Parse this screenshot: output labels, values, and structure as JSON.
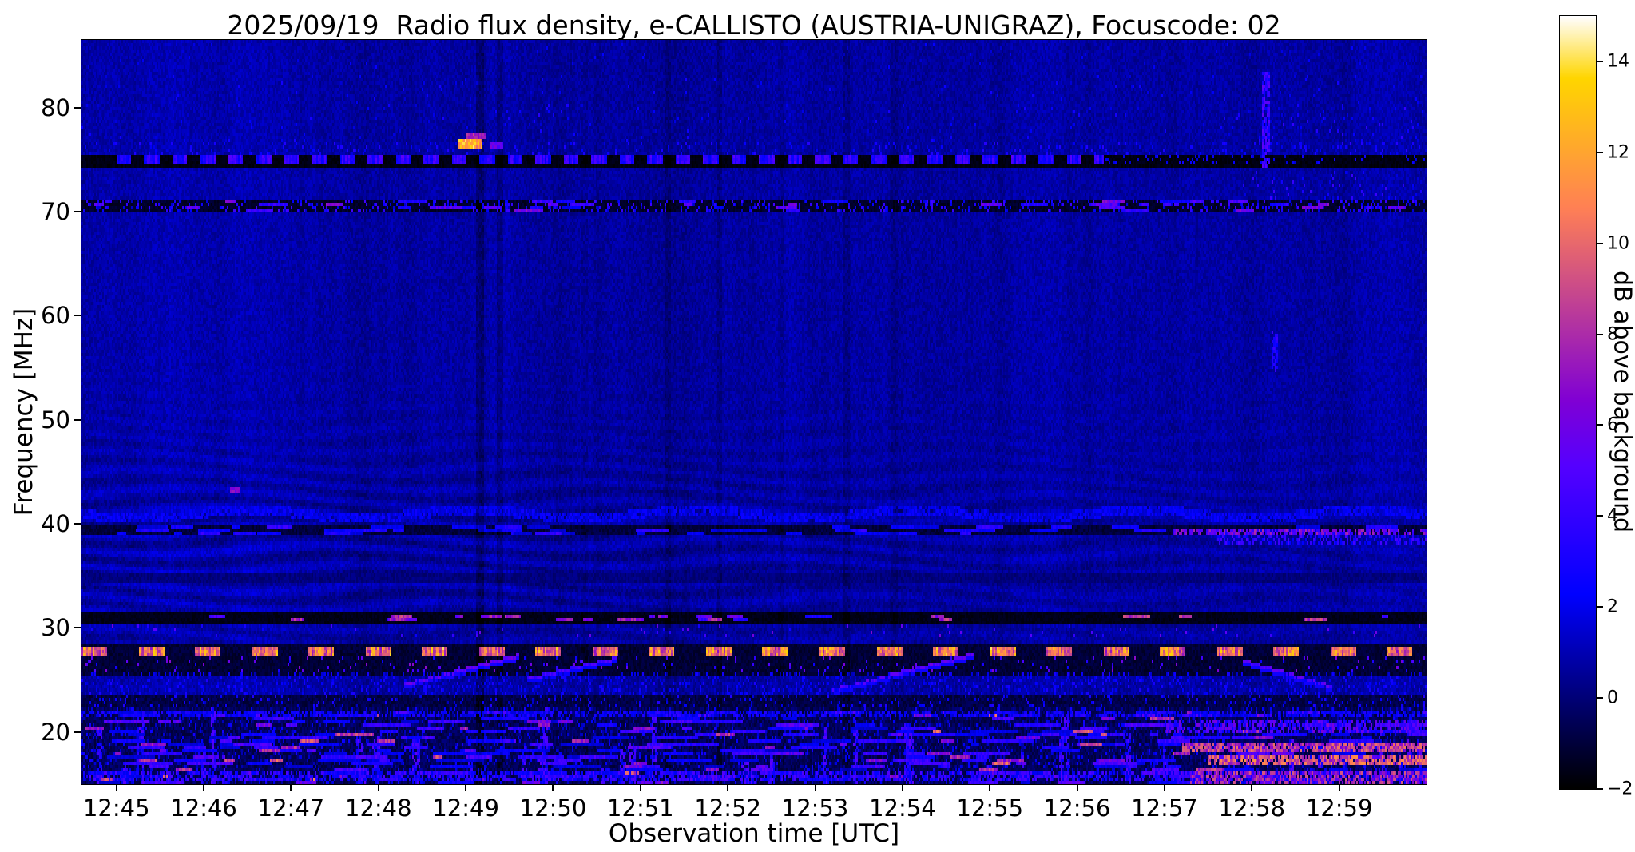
{
  "colors": {
    "background": "#ffffff",
    "axis": "#000000"
  },
  "chart_data": {
    "type": "heatmap",
    "title": "2025/09/19  Radio flux density, e-CALLISTO (AUSTRIA-UNIGRAZ), Focuscode: 02",
    "xlabel": "Observation time [UTC]",
    "ylabel": "Frequency [MHz]",
    "x_ticks": [
      "12:45",
      "12:46",
      "12:47",
      "12:48",
      "12:49",
      "12:50",
      "12:51",
      "12:52",
      "12:53",
      "12:54",
      "12:55",
      "12:56",
      "12:57",
      "12:58",
      "12:59"
    ],
    "y_ticks": [
      80,
      70,
      60,
      50,
      40,
      30,
      20
    ],
    "freq_range_mhz": [
      15,
      86.5
    ],
    "time_span_minutes": 15,
    "background_level_db": 0.7,
    "grid": false,
    "colorbar": {
      "label": "dB above background",
      "ticks": [
        14,
        12,
        10,
        8,
        6,
        4,
        2,
        0,
        -2
      ],
      "range": [
        -2,
        15
      ],
      "colormap": "gnuplot2"
    },
    "features": [
      {
        "type": "speckle_band",
        "f0": 84,
        "f1": 86.3,
        "density": 0.008,
        "vmin": 1.5,
        "vmax": 2.5
      },
      {
        "type": "speckle_band",
        "f0": 76.8,
        "f1": 83,
        "density": 0.012,
        "vmin": 1.5,
        "vmax": 3
      },
      {
        "type": "speckle_band",
        "f0": 78.5,
        "f1": 80.5,
        "t0": 4.3,
        "t1": 5.3,
        "density": 0.05,
        "vmin": 1.5,
        "vmax": 3.5
      },
      {
        "type": "speckle_band",
        "f0": 76,
        "f1": 80,
        "t0": 12.6,
        "t1": 15.4,
        "density": 0.04,
        "vmin": 1.3,
        "vmax": 4
      },
      {
        "type": "speckle_band",
        "f0": 75.6,
        "f1": 76.7,
        "density": 0.09,
        "vmin": 1.2,
        "vmax": 3.5
      },
      {
        "type": "dark_band",
        "f0": 74.5,
        "f1": 75.5,
        "level": -1.7,
        "jitter": 0.5
      },
      {
        "type": "dash_line",
        "f0": 74.95,
        "f1": 75.4,
        "t0": 0,
        "t1": 11.3,
        "period": 0.32,
        "duty": 0.55,
        "vmin": 2.2,
        "vmax": 5.0
      },
      {
        "type": "speckle_band",
        "f0": 74.95,
        "f1": 75.4,
        "t0": 11.3,
        "t1": 15.4,
        "density": 0.1,
        "vmin": 1.5,
        "vmax": 3
      },
      {
        "type": "blob",
        "t": 4.05,
        "f": 76.6,
        "w": 0.25,
        "h": 0.55,
        "value": 12.5
      },
      {
        "type": "blob",
        "t": 4.1,
        "f": 77.4,
        "w": 0.2,
        "h": 0.4,
        "value": 8
      },
      {
        "type": "blob",
        "t": 4.35,
        "f": 76.5,
        "w": 0.12,
        "h": 0.4,
        "value": 6
      },
      {
        "type": "dark_band",
        "f0": 70.2,
        "f1": 71.3,
        "level": -1.3,
        "jitter": 0.7
      },
      {
        "type": "speckle_band",
        "f0": 70.3,
        "f1": 71.2,
        "density": 0.2,
        "vmin": 1.2,
        "vmax": 4.5
      },
      {
        "type": "hsegments",
        "f0": 70.3,
        "f1": 71.2,
        "count": 45,
        "minLen": 0.06,
        "maxLen": 0.35,
        "vmin": 2,
        "vmax": 6.5
      },
      {
        "type": "speckle_band",
        "f0": 71.3,
        "f1": 74,
        "t0": 12.9,
        "t1": 15.4,
        "density": 0.05,
        "vmin": 1.3,
        "vmax": 4.5
      },
      {
        "type": "vburst",
        "t": 13.15,
        "f0": 74.5,
        "f1": 83.5,
        "width": 0.07,
        "density": 0.75,
        "vmin": 2.5,
        "vmax": 5.5
      },
      {
        "type": "vburst",
        "t": 13.25,
        "f0": 55,
        "f1": 58.5,
        "width": 0.06,
        "density": 0.8,
        "vmin": 2.2,
        "vmax": 4.2
      },
      {
        "type": "blob",
        "t": 1.35,
        "f": 43.4,
        "w": 0.1,
        "h": 0.45,
        "value": 6.5
      },
      {
        "type": "hline_bright",
        "f0": 40.8,
        "f1": 41.4,
        "t0": -0.4,
        "t1": 15.4,
        "speckle": 0.85,
        "wavy": true,
        "vmin": 1.3,
        "vmax": 2.8
      },
      {
        "type": "dark_band",
        "f0": 39.1,
        "f1": 40.0,
        "level": -1.0,
        "jitter": 0.9
      },
      {
        "type": "hsegments",
        "f0": 39.2,
        "f1": 39.9,
        "count": 70,
        "minLen": 0.05,
        "maxLen": 0.4,
        "vmin": 1.4,
        "vmax": 4
      },
      {
        "type": "hline_bright",
        "f0": 39.25,
        "f1": 39.7,
        "t0": 12.1,
        "t1": 15.4,
        "speckle": 0.65,
        "vmin": 3.5,
        "vmax": 8
      },
      {
        "type": "hline_bright",
        "f0": 38.4,
        "f1": 38.8,
        "t0": 12.6,
        "t1": 15.4,
        "speckle": 0.4,
        "vmin": 2,
        "vmax": 5
      },
      {
        "type": "dark_band",
        "f0": 34.75,
        "f1": 35.25,
        "level": 0.1,
        "jitter": 0.8
      },
      {
        "type": "speckle_band",
        "f0": 29.3,
        "f1": 30.4,
        "density": 0.02,
        "vmin": 2.5,
        "vmax": 7
      },
      {
        "type": "dark_band",
        "f0": 30.75,
        "f1": 31.5,
        "level": -1.6,
        "jitter": 0.5
      },
      {
        "type": "hsegments",
        "f0": 30.85,
        "f1": 31.4,
        "count": 28,
        "minLen": 0.05,
        "maxLen": 0.3,
        "vmin": 3,
        "vmax": 9
      },
      {
        "type": "dark_band",
        "f0": 25.8,
        "f1": 28.6,
        "level": -1.1,
        "jitter": 0.8
      },
      {
        "type": "dash_line",
        "f0": 27.55,
        "f1": 28.2,
        "t0": -0.4,
        "t1": 15.4,
        "period": 0.65,
        "duty": 0.45,
        "vmin": 8,
        "vmax": 12.5
      },
      {
        "type": "speckle_band",
        "f0": 25.9,
        "f1": 27.4,
        "density": 0.05,
        "vmin": 2.5,
        "vmax": 7
      },
      {
        "type": "diag",
        "t0": 3.3,
        "f0": 24.7,
        "t1": 4.6,
        "f1": 27.5,
        "value": 5.5
      },
      {
        "type": "diag",
        "t0": 4.7,
        "f0": 25.3,
        "t1": 5.7,
        "f1": 27.2,
        "value": 4.5
      },
      {
        "type": "diag",
        "t0": 8.2,
        "f0": 24.2,
        "t1": 9.8,
        "f1": 27.6,
        "value": 5
      },
      {
        "type": "diag",
        "t0": 12.9,
        "f0": 27.0,
        "t1": 13.9,
        "f1": 24.5,
        "value": 5
      },
      {
        "type": "speckle_band",
        "f0": 23.8,
        "f1": 25.6,
        "density": 0.22,
        "vmin": 0.8,
        "vmax": 3.2
      },
      {
        "type": "dark_band",
        "f0": 22.3,
        "f1": 23.7,
        "level": -0.8,
        "jitter": 1.0
      },
      {
        "type": "speckle_band",
        "f0": 22.4,
        "f1": 23.6,
        "density": 0.1,
        "vmin": 1.2,
        "vmax": 3.5
      },
      {
        "type": "dark_band",
        "f0": 15,
        "f1": 22.3,
        "level": -0.5,
        "jitter": 1.3
      },
      {
        "type": "speckle_band",
        "f0": 15,
        "f1": 22.3,
        "density": 0.15,
        "vmin": 0.5,
        "vmax": 3
      },
      {
        "type": "vbursts",
        "count": 45,
        "f0": 15,
        "f1": 22.5,
        "vmin": 1.8,
        "vmax": 5.5
      },
      {
        "type": "hsegments",
        "f0": 15.2,
        "f1": 22.2,
        "count": 320,
        "minLen": 0.07,
        "maxLen": 0.55,
        "vmin": 1.4,
        "vmax": 5
      },
      {
        "type": "hsegments",
        "f0": 15.2,
        "f1": 22.2,
        "count": 80,
        "minLen": 0.04,
        "maxLen": 0.3,
        "vmin": 5,
        "vmax": 9.5
      },
      {
        "type": "hline_bright",
        "f0": 21.6,
        "f1": 22.1,
        "t0": -0.4,
        "t1": 15.4,
        "speckle": 0.55,
        "vmin": 1.5,
        "vmax": 3.5
      },
      {
        "type": "hline_bright",
        "f0": 15.6,
        "f1": 16.3,
        "t0": -0.4,
        "t1": 15.4,
        "speckle": 0.5,
        "vmin": 1.8,
        "vmax": 5
      },
      {
        "type": "hline_bright",
        "f0": 20.3,
        "f1": 21.1,
        "t0": 12.0,
        "t1": 15.4,
        "speckle": 0.55,
        "vmin": 2.5,
        "vmax": 6.5
      },
      {
        "type": "hline_bright",
        "f0": 18.3,
        "f1": 18.95,
        "t0": 12.2,
        "t1": 15.4,
        "speckle": 0.8,
        "vmin": 6,
        "vmax": 10.5
      },
      {
        "type": "hline_bright",
        "f0": 17.25,
        "f1": 17.7,
        "t0": 12.5,
        "t1": 15.4,
        "speckle": 0.75,
        "vmin": 7,
        "vmax": 11.5
      },
      {
        "type": "hline_bright",
        "f0": 15.4,
        "f1": 16.2,
        "t0": 12.3,
        "t1": 15.4,
        "speckle": 0.6,
        "vmin": 5,
        "vmax": 9.5
      },
      {
        "type": "vstreak_dark",
        "t": 4.15,
        "width": 0.08,
        "amount": 0.9
      },
      {
        "type": "vstreak_dark",
        "t": 4.38,
        "width": 0.06,
        "amount": 0.7
      },
      {
        "type": "vstreak_dark",
        "t": 5.35,
        "width": 0.05,
        "amount": 0.35
      },
      {
        "type": "vstreak_dark",
        "t": 6.3,
        "width": 0.06,
        "amount": 0.55
      },
      {
        "type": "vstreak_dark",
        "t": 6.9,
        "width": 0.05,
        "amount": 0.5
      },
      {
        "type": "vstreak_dark",
        "t": 7.6,
        "width": 0.05,
        "amount": 0.35
      },
      {
        "type": "vstreak_dark",
        "t": 8.35,
        "width": 0.06,
        "amount": 0.55
      },
      {
        "type": "vstreak_dark",
        "t": 8.9,
        "width": 0.05,
        "amount": 0.3
      }
    ]
  }
}
